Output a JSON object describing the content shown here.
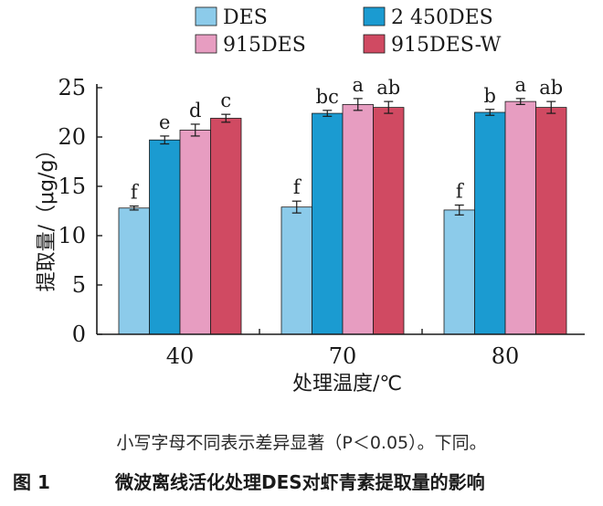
{
  "chart_data": {
    "type": "bar",
    "categories": [
      "40",
      "70",
      "80"
    ],
    "xlabel": "处理温度/℃",
    "ylabel": "提取量/（μg/g）",
    "ylim": [
      0,
      25
    ],
    "yticks": [
      0,
      5,
      10,
      15,
      20,
      25
    ],
    "legend_position": "top",
    "series": [
      {
        "name": "DES",
        "color": "#8ccbea",
        "values": [
          12.8,
          12.9,
          12.6
        ],
        "errors": [
          0.2,
          0.6,
          0.5
        ],
        "labels": [
          "f",
          "f",
          "f"
        ]
      },
      {
        "name": "2 450DES",
        "color": "#1b9bd1",
        "values": [
          19.7,
          22.4,
          22.5
        ],
        "errors": [
          0.4,
          0.3,
          0.3
        ],
        "labels": [
          "e",
          "bc",
          "b"
        ]
      },
      {
        "name": "915DES",
        "color": "#e79dc1",
        "values": [
          20.7,
          23.3,
          23.6
        ],
        "errors": [
          0.6,
          0.6,
          0.3
        ],
        "labels": [
          "d",
          "a",
          "a"
        ]
      },
      {
        "name": "915DES-W",
        "color": "#d04a62",
        "values": [
          21.9,
          23.0,
          23.0
        ],
        "errors": [
          0.4,
          0.6,
          0.6
        ],
        "labels": [
          "c",
          "ab",
          "ab"
        ]
      }
    ]
  },
  "note": "小写字母不同表示差异显著（P＜0.05）。下同。",
  "caption": {
    "number": "图 1",
    "text": "微波离线活化处理DES对虾青素提取量的影响"
  }
}
